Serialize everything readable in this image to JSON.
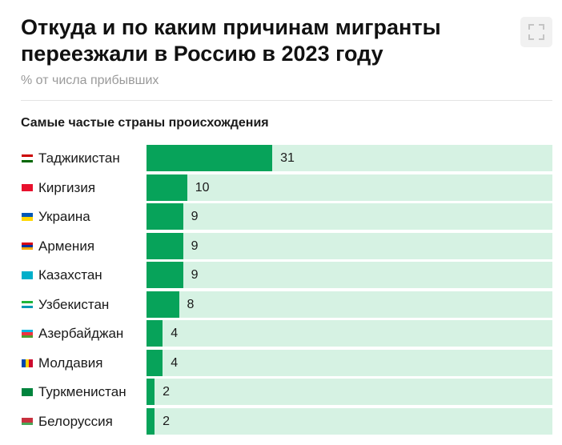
{
  "header": {
    "title": "Откуда и по каким причинам мигранты переезжали в Россию в 2023 году",
    "subtitle": "% от числа прибывших",
    "expand_icon": "expand-icon"
  },
  "colors": {
    "bar": "#07a35a",
    "track": "#d6f2e3",
    "subtitle": "#9a9a9a"
  },
  "chart_data": {
    "type": "bar",
    "orientation": "horizontal",
    "title": "Самые частые страны происхождения",
    "categories": [
      "Таджикистан",
      "Киргизия",
      "Украина",
      "Армения",
      "Казахстан",
      "Узбекистан",
      "Азербайджан",
      "Молдавия",
      "Туркменистан",
      "Белоруссия"
    ],
    "values": [
      31,
      10,
      9,
      9,
      9,
      8,
      4,
      4,
      2,
      2
    ],
    "xlim": [
      0,
      100
    ],
    "grid": false,
    "legend": "none"
  }
}
